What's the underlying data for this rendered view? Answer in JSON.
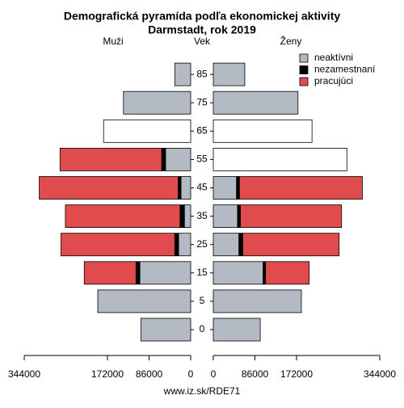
{
  "chart_data": {
    "type": "pyramid",
    "title": "Demografická pyramída podľa ekonomickej aktivity",
    "subtitle": "Darmstadt, rok 2019",
    "left_label": "Muži",
    "center_label": "Vek",
    "right_label": "Ženy",
    "footer": "www.iz.sk/RDE71",
    "categories": [
      "0",
      "5",
      "15",
      "25",
      "35",
      "45",
      "55",
      "65",
      "75",
      "85"
    ],
    "xlim": [
      0,
      344000
    ],
    "xticks": [
      0,
      86000,
      172000,
      344000
    ],
    "series": [
      {
        "name": "neaktívni",
        "color": "#b4bac3",
        "values_male": [
          103000,
          192000,
          105000,
          25000,
          13000,
          20000,
          52000,
          null,
          139000,
          33000
        ],
        "values_female": [
          97000,
          182000,
          103000,
          53000,
          50000,
          48000,
          null,
          null,
          175000,
          65000
        ]
      },
      {
        "name": "nezamestnaní",
        "color": "#000000",
        "values_male": [
          null,
          null,
          8000,
          8000,
          9000,
          6000,
          8000,
          null,
          null,
          null
        ],
        "values_female": [
          null,
          null,
          5000,
          8000,
          6000,
          6000,
          null,
          null,
          null,
          null
        ]
      },
      {
        "name": "pracujúci",
        "color": "#e04c4e",
        "values_male": [
          null,
          null,
          107000,
          235000,
          237000,
          287000,
          210000,
          null,
          null,
          null
        ],
        "values_female": [
          null,
          null,
          90000,
          199000,
          209000,
          254000,
          null,
          null,
          null,
          null
        ]
      },
      {
        "color": "#ffffff",
        "values_male": [
          null,
          null,
          null,
          null,
          null,
          null,
          null,
          180000,
          null,
          null
        ],
        "values_female": [
          null,
          null,
          null,
          null,
          null,
          null,
          276000,
          204000,
          null,
          null
        ]
      }
    ]
  }
}
